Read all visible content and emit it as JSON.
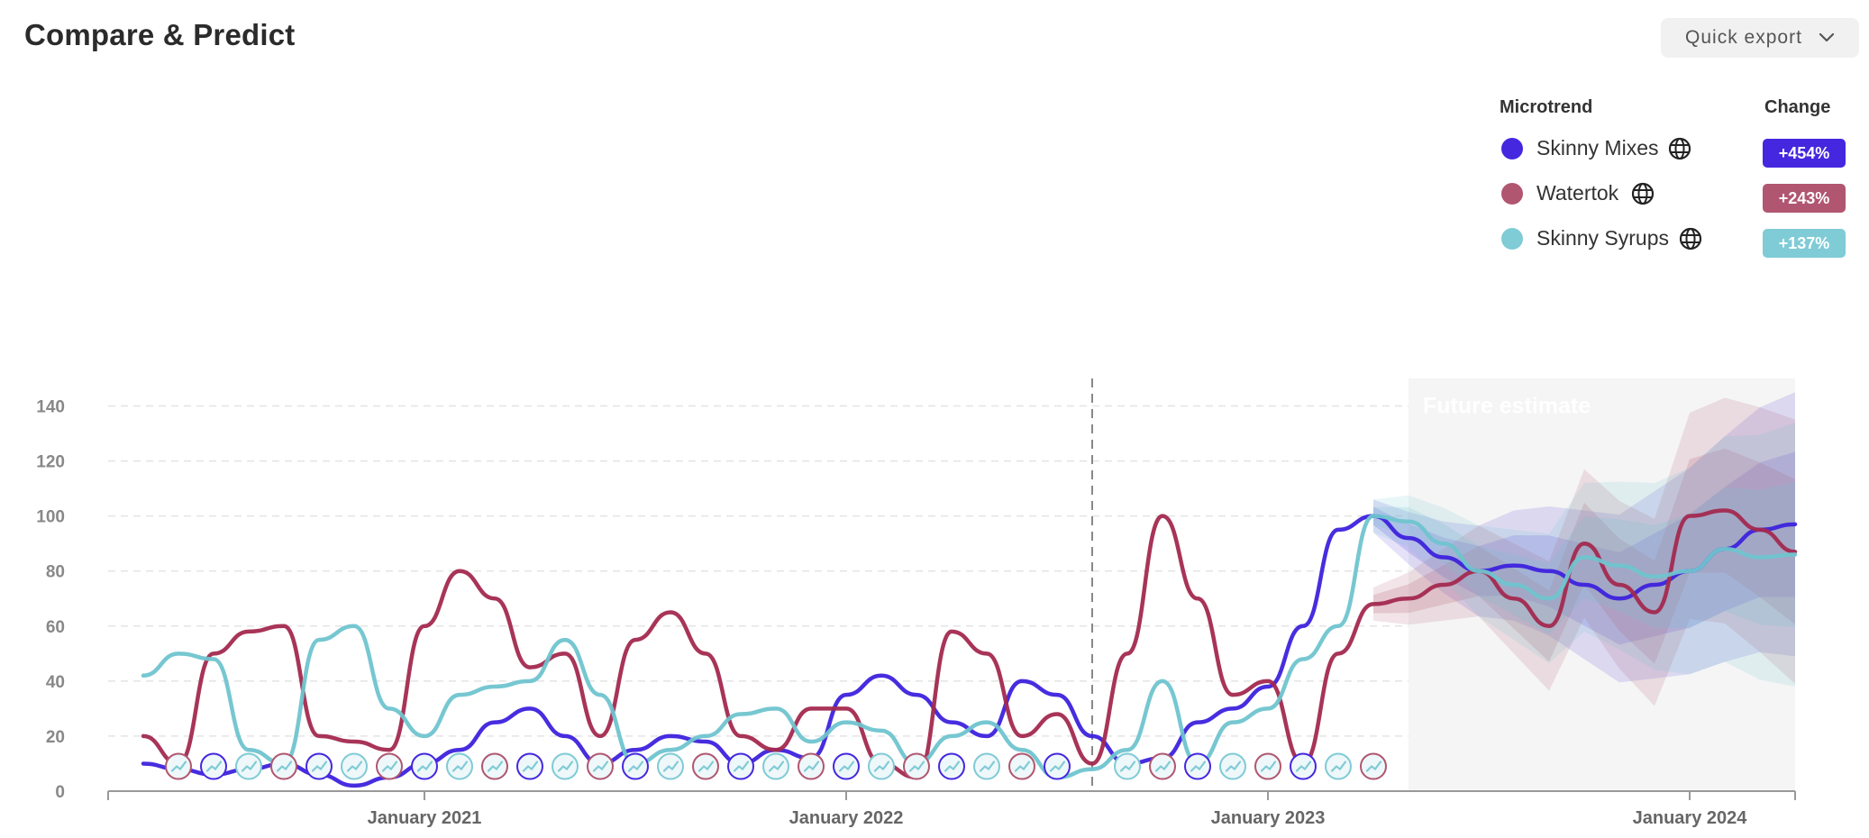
{
  "header": {
    "title": "Compare & Predict",
    "export_label": "Quick export"
  },
  "legend": {
    "col_microtrend": "Microtrend",
    "col_change": "Change",
    "items": [
      {
        "name": "Skinny Mixes",
        "change": "+454%",
        "color": "#4527e0"
      },
      {
        "name": "Watertok",
        "change": "+243%",
        "color": "#b05670"
      },
      {
        "name": "Skinny Syrups",
        "change": "+137%",
        "color": "#7fcbd6"
      }
    ]
  },
  "chart_data": {
    "type": "line",
    "title": "",
    "xlabel": "",
    "ylabel": "",
    "ylim": [
      0,
      150
    ],
    "yticks": [
      "0",
      "20",
      "40",
      "60",
      "80",
      "100",
      "120",
      "140"
    ],
    "xlim": [
      "2020-04",
      "2024-04"
    ],
    "xticks": [
      {
        "label": "January 2021",
        "date": "2021-01"
      },
      {
        "label": "January 2022",
        "date": "2022-01"
      },
      {
        "label": "January 2023",
        "date": "2023-01"
      },
      {
        "label": "January 2024",
        "date": "2024-01"
      }
    ],
    "grid": true,
    "divider_date": "2022-08",
    "future_start": "2023-05",
    "future_label": "Future estimate",
    "series": [
      {
        "name": "Skinny Mixes",
        "color": "#3d22dd",
        "x": [
          "2020-05",
          "2020-06",
          "2020-07",
          "2020-08",
          "2020-09",
          "2020-10",
          "2020-11",
          "2020-12",
          "2021-01",
          "2021-02",
          "2021-03",
          "2021-04",
          "2021-05",
          "2021-06",
          "2021-07",
          "2021-08",
          "2021-09",
          "2021-10",
          "2021-11",
          "2021-12",
          "2022-01",
          "2022-02",
          "2022-03",
          "2022-04",
          "2022-05",
          "2022-06",
          "2022-07",
          "2022-08",
          "2022-09",
          "2022-10",
          "2022-11",
          "2022-12",
          "2023-01",
          "2023-02",
          "2023-03",
          "2023-04",
          "2023-05",
          "2023-06",
          "2023-07",
          "2023-08",
          "2023-09",
          "2023-10",
          "2023-11",
          "2023-12",
          "2024-01",
          "2024-02",
          "2024-03",
          "2024-04"
        ],
        "y": [
          10,
          8,
          6,
          8,
          10,
          6,
          2,
          5,
          10,
          15,
          25,
          30,
          20,
          10,
          15,
          20,
          18,
          10,
          15,
          12,
          35,
          42,
          35,
          25,
          20,
          40,
          35,
          20,
          10,
          12,
          25,
          30,
          38,
          60,
          95,
          100,
          92,
          85,
          80,
          82,
          80,
          75,
          70,
          75,
          80,
          88,
          95,
          97
        ]
      },
      {
        "name": "Watertok",
        "color": "#a3294f",
        "x": [
          "2020-05",
          "2020-06",
          "2020-07",
          "2020-08",
          "2020-09",
          "2020-10",
          "2020-11",
          "2020-12",
          "2021-01",
          "2021-02",
          "2021-03",
          "2021-04",
          "2021-05",
          "2021-06",
          "2021-07",
          "2021-08",
          "2021-09",
          "2021-10",
          "2021-11",
          "2021-12",
          "2022-01",
          "2022-02",
          "2022-03",
          "2022-04",
          "2022-05",
          "2022-06",
          "2022-07",
          "2022-08",
          "2022-09",
          "2022-10",
          "2022-11",
          "2022-12",
          "2023-01",
          "2023-02",
          "2023-03",
          "2023-04",
          "2023-05",
          "2023-06",
          "2023-07",
          "2023-08",
          "2023-09",
          "2023-10",
          "2023-11",
          "2023-12",
          "2024-01",
          "2024-02",
          "2024-03",
          "2024-04"
        ],
        "y": [
          20,
          10,
          50,
          58,
          60,
          20,
          18,
          15,
          60,
          80,
          70,
          45,
          50,
          20,
          55,
          65,
          50,
          20,
          15,
          30,
          30,
          10,
          5,
          58,
          50,
          20,
          28,
          10,
          50,
          100,
          70,
          35,
          40,
          10,
          50,
          68,
          70,
          75,
          80,
          70,
          60,
          90,
          75,
          65,
          100,
          102,
          95,
          87
        ]
      },
      {
        "name": "Skinny Syrups",
        "color": "#6fc4cf",
        "x": [
          "2020-05",
          "2020-06",
          "2020-07",
          "2020-08",
          "2020-09",
          "2020-10",
          "2020-11",
          "2020-12",
          "2021-01",
          "2021-02",
          "2021-03",
          "2021-04",
          "2021-05",
          "2021-06",
          "2021-07",
          "2021-08",
          "2021-09",
          "2021-10",
          "2021-11",
          "2021-12",
          "2022-01",
          "2022-02",
          "2022-03",
          "2022-04",
          "2022-05",
          "2022-06",
          "2022-07",
          "2022-08",
          "2022-09",
          "2022-10",
          "2022-11",
          "2022-12",
          "2023-01",
          "2023-02",
          "2023-03",
          "2023-04",
          "2023-05",
          "2023-06",
          "2023-07",
          "2023-08",
          "2023-09",
          "2023-10",
          "2023-11",
          "2023-12",
          "2024-01",
          "2024-02",
          "2024-03",
          "2024-04"
        ],
        "y": [
          42,
          50,
          48,
          15,
          10,
          55,
          60,
          30,
          20,
          35,
          38,
          40,
          55,
          35,
          10,
          15,
          20,
          28,
          30,
          18,
          25,
          22,
          10,
          20,
          25,
          15,
          5,
          8,
          15,
          40,
          10,
          25,
          30,
          48,
          60,
          100,
          98,
          90,
          80,
          75,
          70,
          85,
          82,
          78,
          80,
          88,
          85,
          86
        ]
      }
    ],
    "markers": {
      "y": 9,
      "dates": [
        "2020-06",
        "2020-07",
        "2020-08",
        "2020-09",
        "2020-10",
        "2020-11",
        "2020-12",
        "2021-01",
        "2021-02",
        "2021-03",
        "2021-04",
        "2021-05",
        "2021-06",
        "2021-07",
        "2021-08",
        "2021-09",
        "2021-10",
        "2021-11",
        "2021-12",
        "2022-01",
        "2022-02",
        "2022-03",
        "2022-04",
        "2022-05",
        "2022-06",
        "2022-07",
        "2022-09",
        "2022-10",
        "2022-11",
        "2022-12",
        "2023-01",
        "2023-02",
        "2023-03",
        "2023-04"
      ]
    }
  }
}
